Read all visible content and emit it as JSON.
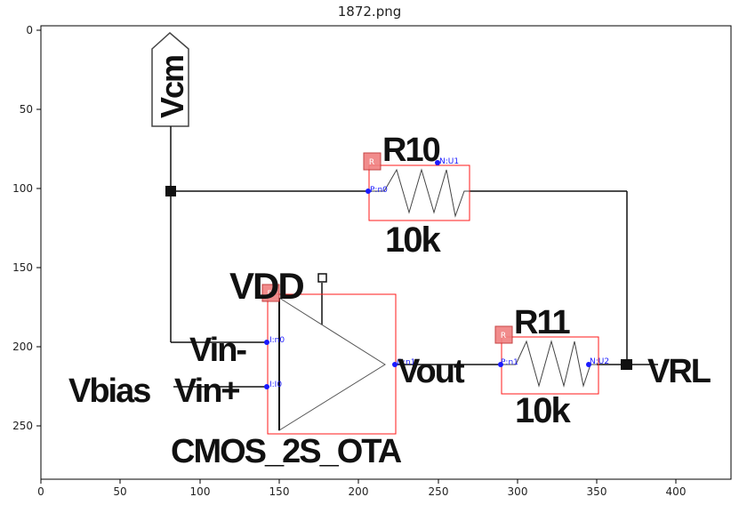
{
  "figure": {
    "title": "1872.png"
  },
  "axes": {
    "x_ticks": [
      "0",
      "50",
      "100",
      "150",
      "200",
      "250",
      "300",
      "350",
      "400"
    ],
    "y_ticks": [
      "0",
      "50",
      "100",
      "150",
      "200",
      "250"
    ]
  },
  "schematic": {
    "nets": {
      "vcm": "Vcm",
      "vdd": "VDD",
      "vbias": "Vbias",
      "vout": "Vout",
      "vrl": "VRL"
    },
    "opamp": {
      "model": "CMOS_2S_OTA",
      "inputs": [
        "Vin-",
        "Vin+"
      ],
      "tag": "D",
      "pins": {
        "inm": "I:n0",
        "inp": "I:I0",
        "out": "O:n1"
      }
    },
    "r10": {
      "name": "R10",
      "value": "10k",
      "tag": "R",
      "pins": {
        "p": "P:n0",
        "n": "N:U1"
      }
    },
    "r11": {
      "name": "R11",
      "value": "10k",
      "tag": "R",
      "pins": {
        "p": "P:n1",
        "n": "N:U2"
      }
    }
  },
  "colors": {
    "bbox": "#ff1a1a",
    "pin": "#1a1aff",
    "tag_fill": "#f08080",
    "wire": "#111111"
  }
}
